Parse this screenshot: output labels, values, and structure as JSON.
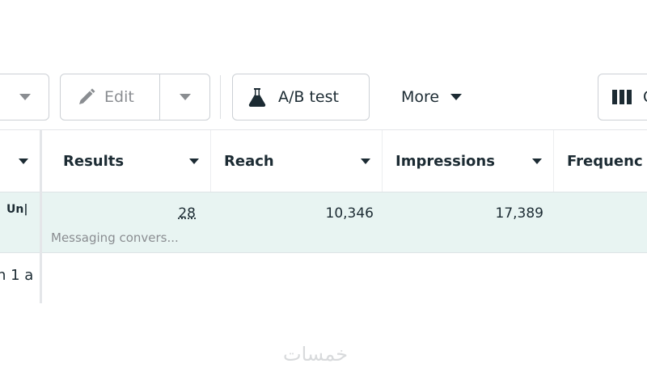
{
  "toolbar": {
    "edit_label": "Edit",
    "ab_test_label": "A/B test",
    "more_label": "More",
    "columns_label": "C"
  },
  "table": {
    "columns": [
      "Results",
      "Reach",
      "Impressions",
      "Frequenc"
    ],
    "rows": [
      {
        "name": "Un|",
        "results": "28",
        "results_sub": "Messaging convers...",
        "reach": "10,346",
        "impressions": "17,389",
        "frequency": ""
      },
      {
        "name": "n 1 a"
      }
    ]
  },
  "watermark": "خمسات",
  "colors": {
    "row_highlight": "#e8f4f2",
    "border": "#ccd0d5"
  }
}
